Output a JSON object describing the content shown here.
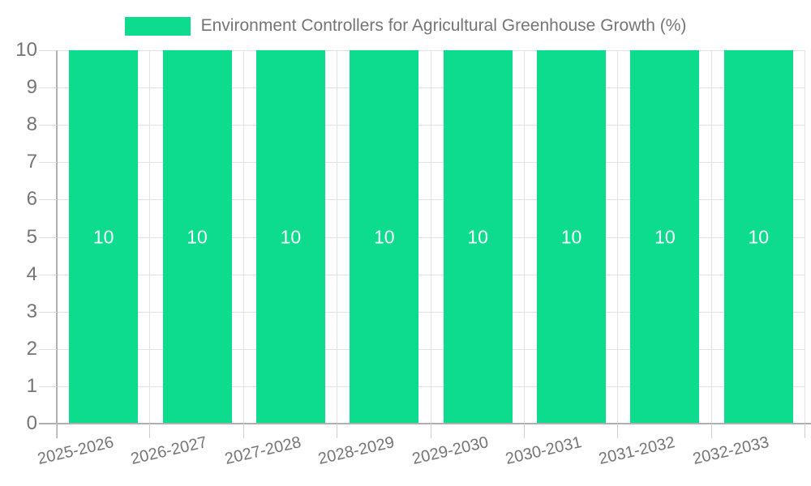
{
  "legend": {
    "label": "Environment Controllers for Agricultural Greenhouse Growth (%)"
  },
  "colors": {
    "bar": "#0ddc8f",
    "text": "#757575",
    "value_label": "#ffffff",
    "gridline": "#e2e2e2",
    "axis": "#b0b0b0",
    "tick": "#cfcfcf",
    "background": "#ffffff"
  },
  "chart_data": {
    "type": "bar",
    "title": "Environment Controllers for Agricultural Greenhouse Growth (%)",
    "categories": [
      "2025-2026",
      "2026-2027",
      "2027-2028",
      "2028-2029",
      "2029-2030",
      "2030-2031",
      "2031-2032",
      "2032-2033"
    ],
    "values": [
      10,
      10,
      10,
      10,
      10,
      10,
      10,
      10
    ],
    "value_labels": [
      "10",
      "10",
      "10",
      "10",
      "10",
      "10",
      "10",
      "10"
    ],
    "series_name": "Environment Controllers for Agricultural Greenhouse Growth (%)",
    "xlabel": "",
    "ylabel": "",
    "ylim": [
      0,
      10
    ],
    "yticks": [
      0,
      1,
      2,
      3,
      4,
      5,
      6,
      7,
      8,
      9,
      10
    ],
    "grid": true,
    "bar_color": "#0ddc8f",
    "legend_position": "top",
    "x_tick_label_rotation_deg": -13
  }
}
